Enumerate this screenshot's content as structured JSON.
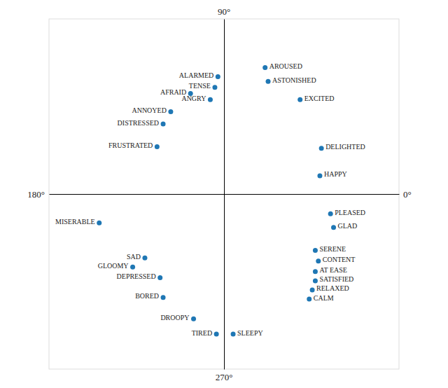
{
  "chart_data": {
    "type": "scatter",
    "labels": [
      "ALARMED",
      "TENSE",
      "AFRAID",
      "ANGRY",
      "ANNOYED",
      "DISTRESSED",
      "FRUSTRATED",
      "MISERABLE",
      "SAD",
      "GLOOMY",
      "DEPRESSED",
      "BORED",
      "DROOPY",
      "TIRED",
      "SLEEPY",
      "AROUSED",
      "ASTONISHED",
      "EXCITED",
      "DELIGHTED",
      "HAPPY",
      "PLEASED",
      "GLAD",
      "SERENE",
      "CONTENT",
      "AT EASE",
      "SATISFIED",
      "RELAXED",
      "CALM"
    ],
    "x": [
      -0.04,
      -0.06,
      -0.22,
      -0.09,
      -0.35,
      -0.4,
      -0.44,
      -0.82,
      -0.52,
      -0.6,
      -0.42,
      -0.4,
      -0.2,
      -0.05,
      0.06,
      0.27,
      0.29,
      0.5,
      0.64,
      0.63,
      0.7,
      0.72,
      0.6,
      0.62,
      0.6,
      0.6,
      0.58,
      0.56
    ],
    "values": [
      0.77,
      0.7,
      0.66,
      0.62,
      0.54,
      0.46,
      0.31,
      -0.19,
      -0.42,
      -0.48,
      -0.55,
      -0.68,
      -0.82,
      -0.92,
      -0.92,
      0.83,
      0.74,
      0.62,
      0.3,
      0.12,
      -0.13,
      -0.22,
      -0.37,
      -0.44,
      -0.51,
      -0.57,
      -0.63,
      -0.69
    ],
    "annotations": [
      "0°",
      "90°",
      "180°",
      "270°"
    ],
    "xlim": [
      -1.15,
      1.15
    ],
    "ylim": [
      -1.15,
      1.15
    ],
    "tick_labels": false
  }
}
